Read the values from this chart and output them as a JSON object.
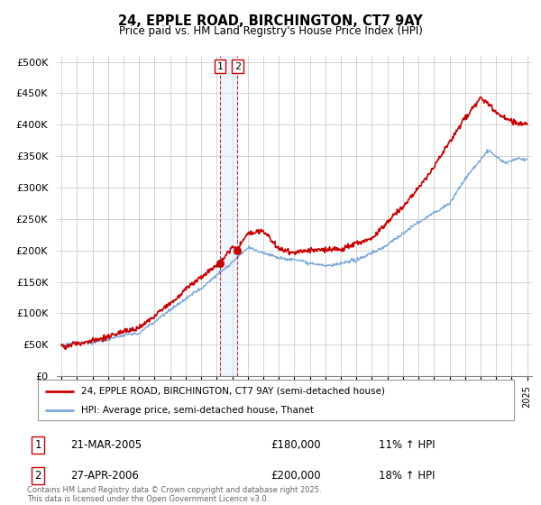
{
  "title": "24, EPPLE ROAD, BIRCHINGTON, CT7 9AY",
  "subtitle": "Price paid vs. HM Land Registry's House Price Index (HPI)",
  "ylabel_ticks": [
    "£0",
    "£50K",
    "£100K",
    "£150K",
    "£200K",
    "£250K",
    "£300K",
    "£350K",
    "£400K",
    "£450K",
    "£500K"
  ],
  "ytick_values": [
    0,
    50000,
    100000,
    150000,
    200000,
    250000,
    300000,
    350000,
    400000,
    450000,
    500000
  ],
  "xlim_left": 1994.7,
  "xlim_right": 2025.3,
  "ylim_top": 510000,
  "sale1_date": 2005.22,
  "sale1_price": 180000,
  "sale2_date": 2006.33,
  "sale2_price": 200000,
  "line_color_property": "#cc0000",
  "line_color_hpi": "#7aaadd",
  "legend_property": "24, EPPLE ROAD, BIRCHINGTON, CT7 9AY (semi-detached house)",
  "legend_hpi": "HPI: Average price, semi-detached house, Thanet",
  "table_rows": [
    {
      "num": "1",
      "date": "21-MAR-2005",
      "price": "£180,000",
      "change": "11% ↑ HPI"
    },
    {
      "num": "2",
      "date": "27-APR-2006",
      "price": "£200,000",
      "change": "18% ↑ HPI"
    }
  ],
  "footnote": "Contains HM Land Registry data © Crown copyright and database right 2025.\nThis data is licensed under the Open Government Licence v3.0.",
  "grid_color": "#cccccc",
  "shade_color": "#ddeeff"
}
